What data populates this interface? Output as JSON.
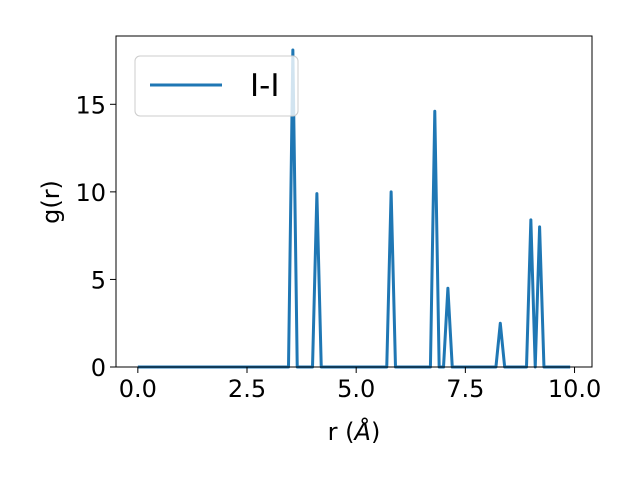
{
  "chart_data": {
    "type": "line",
    "xlabel_prefix": "r (",
    "xlabel_unit": "Å",
    "xlabel_suffix": ")",
    "ylabel": "g(r)",
    "xlim": [
      -0.5,
      10.4
    ],
    "ylim": [
      0,
      18.9
    ],
    "xticks": [
      0.0,
      2.5,
      5.0,
      7.5,
      10.0
    ],
    "xtick_labels": [
      "0.0",
      "2.5",
      "5.0",
      "7.5",
      "10.0"
    ],
    "yticks": [
      0,
      5,
      10,
      15
    ],
    "ytick_labels": [
      "0",
      "5",
      "10",
      "15"
    ],
    "grid": false,
    "legend_position": "top-left",
    "series": [
      {
        "name": "I-I",
        "color": "#1f77b4",
        "x": [
          0.0,
          3.45,
          3.55,
          3.65,
          4.0,
          4.1,
          4.2,
          5.7,
          5.8,
          5.9,
          6.7,
          6.8,
          6.9,
          7.0,
          7.1,
          7.2,
          8.2,
          8.3,
          8.4,
          8.9,
          9.0,
          9.1,
          9.2,
          9.3,
          9.9
        ],
        "y": [
          0,
          0,
          18.1,
          0,
          0,
          9.9,
          0,
          0,
          10.0,
          0,
          0,
          14.6,
          0,
          0,
          4.5,
          0,
          0,
          2.5,
          0,
          0,
          8.4,
          0,
          8.0,
          0,
          0
        ]
      }
    ]
  }
}
